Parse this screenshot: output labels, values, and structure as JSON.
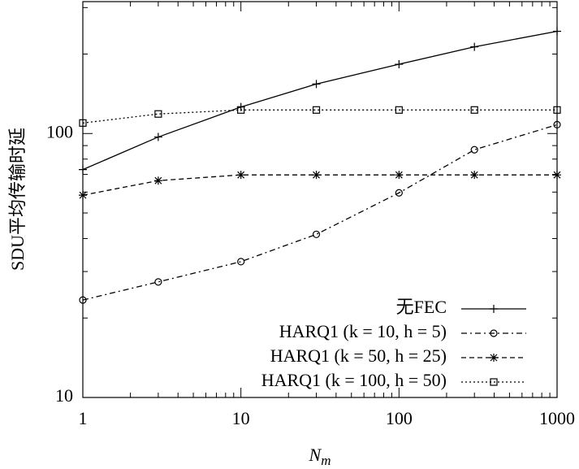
{
  "chart_data": {
    "type": "line",
    "y_label": "SDU平均传输时延",
    "x_label": "N",
    "x_label_sub": "m",
    "x": [
      1,
      3,
      10,
      30,
      100,
      300,
      1000
    ],
    "xscale": "log",
    "yscale": "log",
    "xlim": [
      1,
      1000
    ],
    "ylim": [
      10,
      316
    ],
    "xticks": [
      1,
      10,
      100,
      1000
    ],
    "yticks": [
      10,
      100
    ],
    "xminorticks": [
      2,
      3,
      4,
      5,
      6,
      7,
      8,
      9,
      20,
      30,
      40,
      50,
      60,
      70,
      80,
      90,
      200,
      300,
      400,
      500,
      600,
      700,
      800,
      900
    ],
    "yminorticks": [
      20,
      30,
      40,
      50,
      60,
      70,
      80,
      90,
      200,
      300
    ],
    "legend": "lower right",
    "series": [
      {
        "name": "无FEC",
        "color": "#000000",
        "dash": "solid",
        "marker": "plus",
        "values": [
          73,
          97,
          126,
          154,
          183,
          213,
          244
        ]
      },
      {
        "name": "HARQ1 (k = 10, h = 5)",
        "color": "#000000",
        "dash": "dashdot",
        "marker": "circle",
        "values": [
          23.4,
          27.4,
          32.7,
          41.5,
          59.6,
          86.8,
          108
        ]
      },
      {
        "name": "HARQ1 (k = 50, h = 25)",
        "color": "#000000",
        "dash": "dashed",
        "marker": "star",
        "values": [
          58.4,
          66.3,
          69.7,
          69.7,
          69.7,
          69.7,
          69.7
        ]
      },
      {
        "name": "HARQ1 (k = 100, h = 50)",
        "color": "#000000",
        "dash": "dotted",
        "marker": "square",
        "values": [
          109.6,
          118.6,
          122.8,
          122.8,
          122.8,
          122.8,
          122.8
        ]
      }
    ]
  }
}
